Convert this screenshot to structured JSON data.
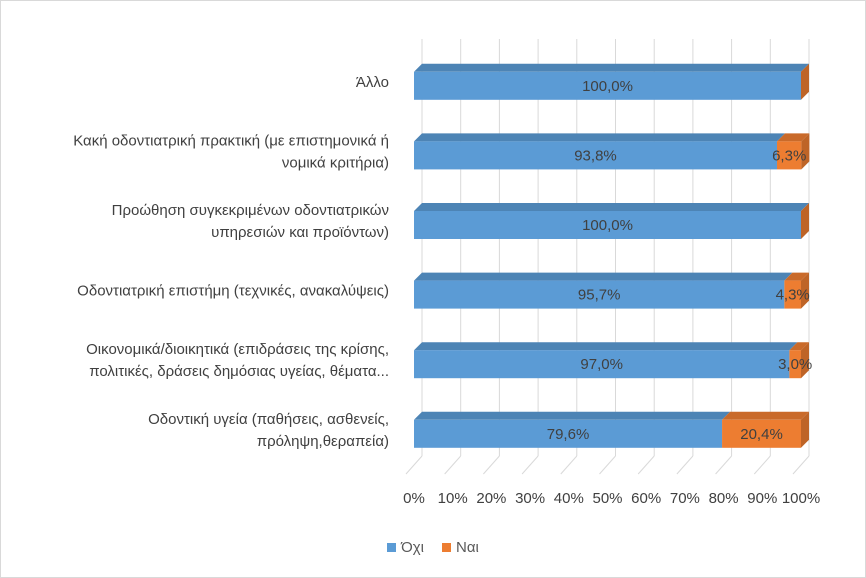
{
  "chart_data": {
    "type": "bar",
    "orientation": "horizontal",
    "stacked": "percent",
    "categories": [
      "Άλλο",
      "Κακή οδοντιατρική πρακτική (με επιστημονικά ή νομικά κριτήρια)",
      "Προώθηση συγκεκριμένων οδοντιατρικών υπηρεσιών και προϊόντων)",
      "Οδοντιατρική επιστήμη (τεχνικές, ανακαλύψεις)",
      "Οικονομικά/διοικητικά (επιδράσεις της κρίσης, πολιτικές, δράσεις δημόσιας υγείας, θέματα...",
      "Οδοντική υγεία (παθήσεις, ασθενείς, πρόληψη,θεραπεία)"
    ],
    "category_lines": [
      [
        "Άλλο"
      ],
      [
        "Κακή οδοντιατρική πρακτική (με επιστημονικά ή",
        "νομικά κριτήρια)"
      ],
      [
        "Προώθηση συγκεκριμένων οδοντιατρικών",
        "υπηρεσιών και προϊόντων)"
      ],
      [
        "Οδοντιατρική επιστήμη (τεχνικές, ανακαλύψεις)"
      ],
      [
        "Οικονομικά/διοικητικά (επιδράσεις της κρίσης,",
        "πολιτικές, δράσεις δημόσιας υγείας, θέματα..."
      ],
      [
        "Οδοντική υγεία (παθήσεις, ασθενείς,",
        "πρόληψη,θεραπεία)"
      ]
    ],
    "series": [
      {
        "name": "Όχι",
        "color": "#5b9bd5",
        "values": [
          100.0,
          93.8,
          100.0,
          95.7,
          97.0,
          79.6
        ],
        "labels": [
          "100,0%",
          "93,8%",
          "100,0%",
          "95,7%",
          "97,0%",
          "79,6%"
        ]
      },
      {
        "name": "Ναι",
        "color": "#ed7d31",
        "values": [
          0.0,
          6.3,
          0.0,
          4.3,
          3.0,
          20.4
        ],
        "labels": [
          "",
          "6,3%",
          "",
          "4,3%",
          "3,0%",
          "20,4%"
        ]
      }
    ],
    "x_ticks": [
      "0%",
      "10%",
      "20%",
      "30%",
      "40%",
      "50%",
      "60%",
      "70%",
      "80%",
      "90%",
      "100%"
    ],
    "xlim": [
      0,
      100
    ],
    "grid": true,
    "legend_position": "bottom",
    "style": "3d"
  }
}
